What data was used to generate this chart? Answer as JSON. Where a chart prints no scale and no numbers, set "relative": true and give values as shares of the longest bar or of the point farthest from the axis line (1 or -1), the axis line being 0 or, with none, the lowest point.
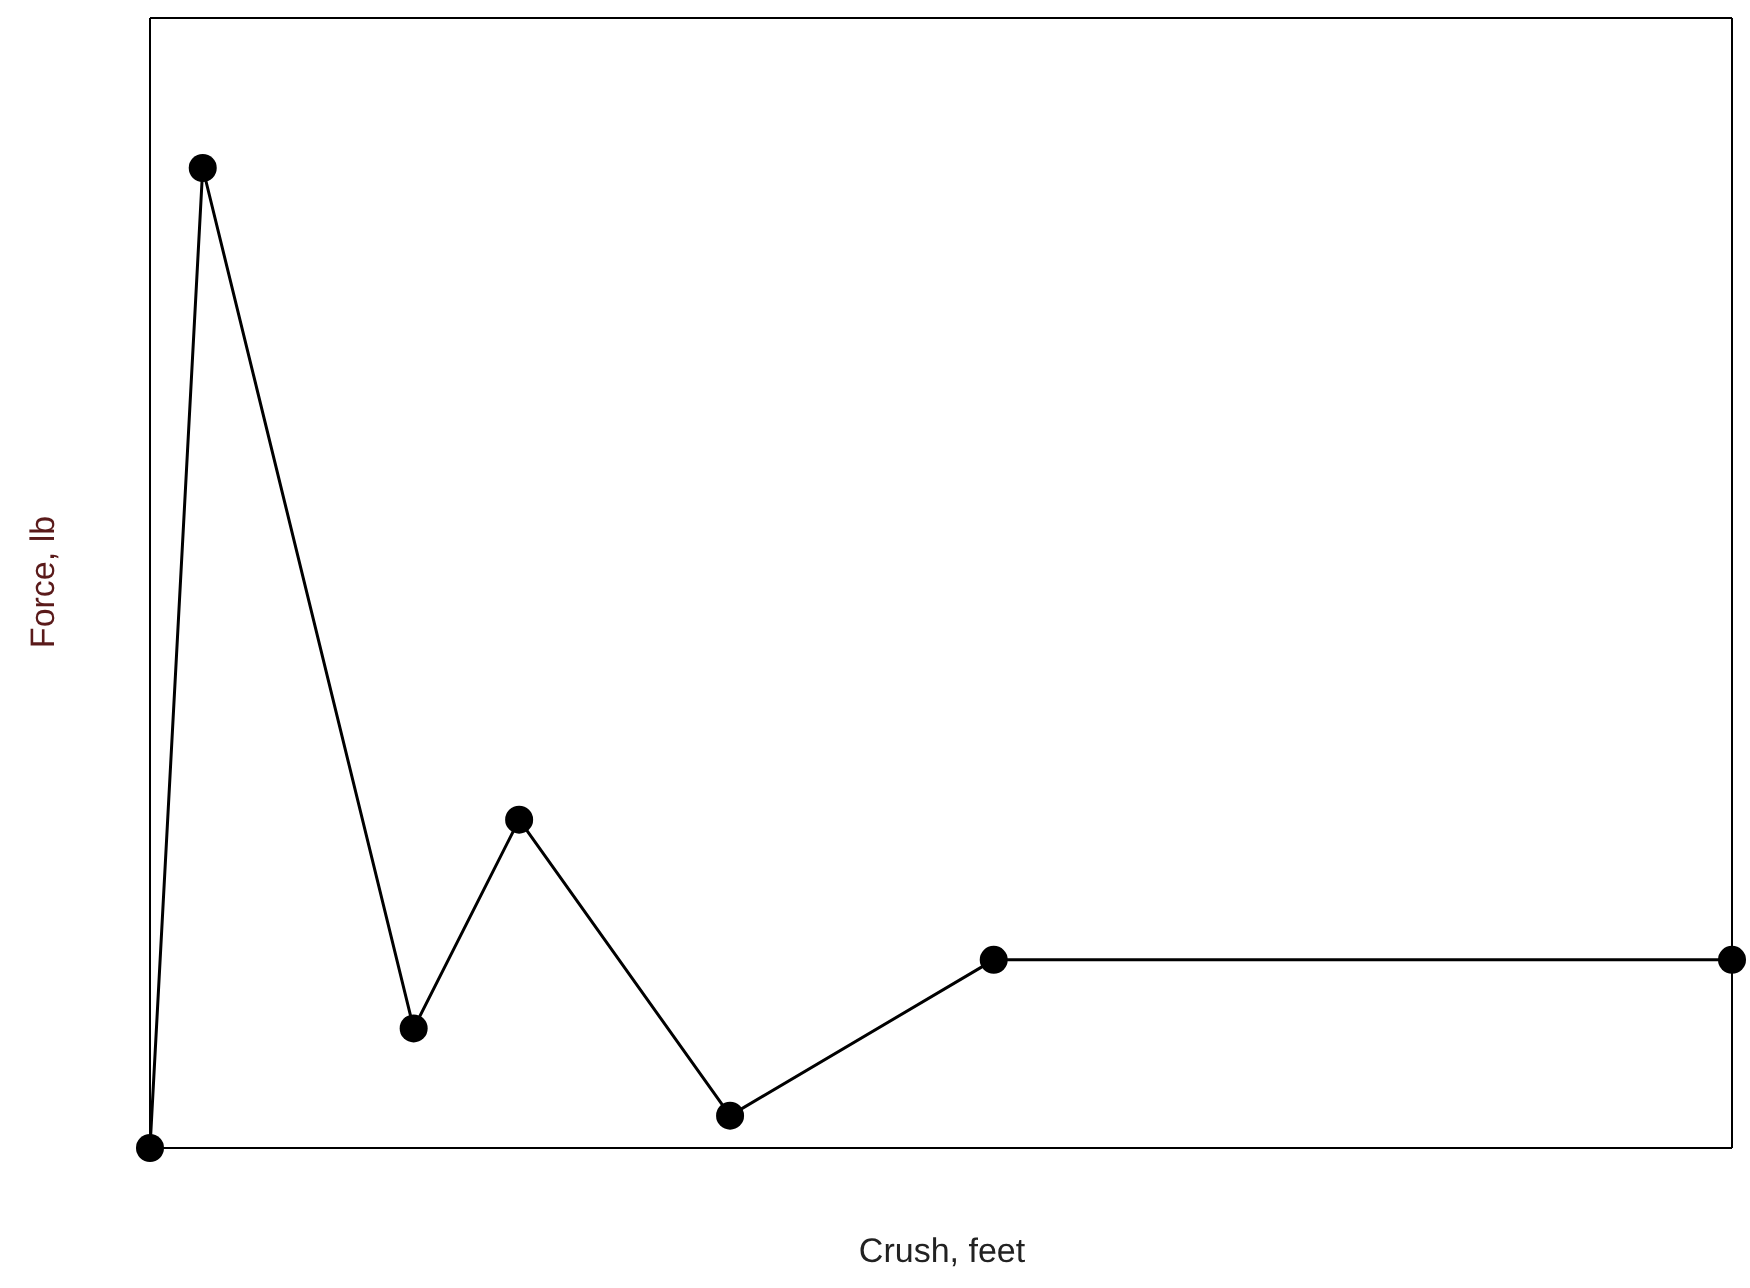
{
  "chart_data": {
    "type": "line",
    "xlabel": "Crush, feet",
    "ylabel": "Force, lb",
    "relative": true,
    "categories": [
      null,
      null,
      null,
      null,
      null,
      null,
      null,
      null,
      null,
      null,
      null,
      null,
      null,
      null,
      null,
      null,
      null,
      null,
      null,
      null,
      null,
      null,
      null,
      null,
      null,
      null,
      null,
      null,
      null,
      null,
      null
    ],
    "marker": "circle",
    "line_style": "solid",
    "series": [
      {
        "color": "#000000",
        "values": [
          0,
          1,
          null,
          null,
          null,
          0.122,
          null,
          0.335,
          null,
          null,
          null,
          0.033,
          null,
          null,
          null,
          null,
          0.192,
          null,
          null,
          null,
          null,
          null,
          null,
          null,
          null,
          null,
          null,
          null,
          null,
          null,
          0.192
        ]
      }
    ]
  }
}
